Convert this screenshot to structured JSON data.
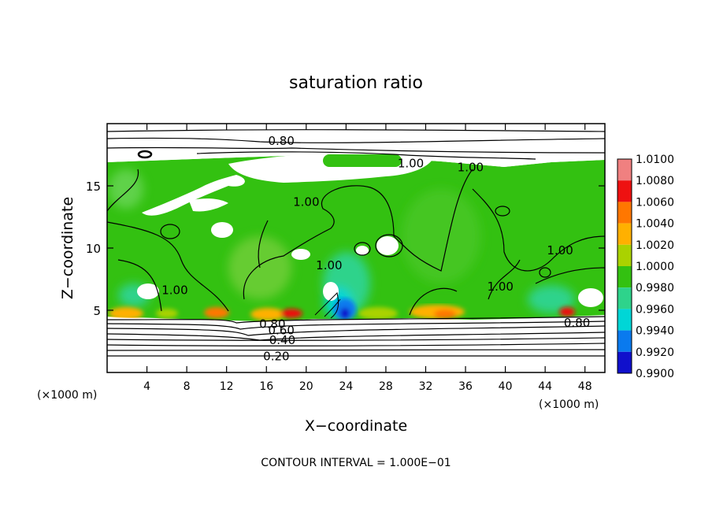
{
  "chart_data": {
    "type": "heatmap",
    "title": "saturation ratio",
    "xlabel": "X−coordinate",
    "ylabel": "Z−coordinate",
    "x_unit_left": "(×1000 m)",
    "x_unit_right": "(×1000 m)",
    "xlim": [
      0,
      50
    ],
    "ylim": [
      0,
      20
    ],
    "x_ticks": [
      4,
      8,
      12,
      16,
      20,
      24,
      28,
      32,
      36,
      40,
      44,
      48
    ],
    "y_ticks": [
      5,
      10,
      15
    ],
    "footer": "CONTOUR INTERVAL = 1.000E−01",
    "colorbar": {
      "levels": [
        "1.0100",
        "1.0080",
        "1.0060",
        "1.0040",
        "1.0020",
        "1.0000",
        "0.9980",
        "0.9960",
        "0.9940",
        "0.9920",
        "0.9900"
      ],
      "colors": [
        "#f08080",
        "#ee1111",
        "#ff7700",
        "#ffb000",
        "#aad200",
        "#33c111",
        "#2ed38b",
        "#00d6d6",
        "#0a7aee",
        "#1010cc",
        "#6a0fb0"
      ]
    },
    "contour_labels": [
      {
        "text": "0.80",
        "x": 17.5,
        "z": 18.6
      },
      {
        "text": "1.00",
        "x": 30.5,
        "z": 16.8
      },
      {
        "text": "1.00",
        "x": 36.5,
        "z": 16.5
      },
      {
        "text": "1.00",
        "x": 20.0,
        "z": 13.7
      },
      {
        "text": "1.00",
        "x": 45.5,
        "z": 9.8
      },
      {
        "text": "1.00",
        "x": 39.5,
        "z": 6.9
      },
      {
        "text": "1.00",
        "x": 6.8,
        "z": 6.6
      },
      {
        "text": "1.00",
        "x": 22.3,
        "z": 8.6
      },
      {
        "text": "0.80",
        "x": 47.2,
        "z": 4.0
      },
      {
        "text": "0.80",
        "x": 16.6,
        "z": 3.9
      },
      {
        "text": "0.60",
        "x": 17.5,
        "z": 3.4
      },
      {
        "text": "0.40",
        "x": 17.6,
        "z": 2.6
      },
      {
        "text": "0.20",
        "x": 17.0,
        "z": 1.3
      }
    ]
  }
}
